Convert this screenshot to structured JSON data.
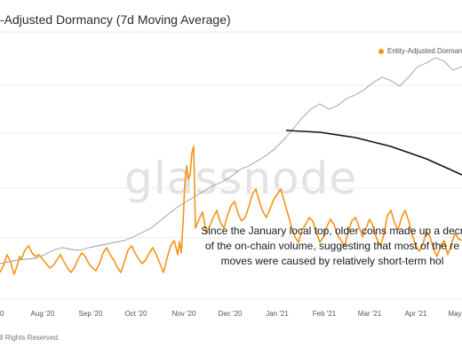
{
  "chart_data": {
    "type": "line",
    "title": "-Adjusted Dormancy (7d Moving Average)",
    "x_ticks": [
      "0",
      "Aug '20",
      "Sep '20",
      "Oct '20",
      "Nov '20",
      "Dec '20",
      "Jan '21",
      "Feb '21",
      "Mar '21",
      "Apr '21",
      "May"
    ],
    "legend_label": "Entity-Adjusted Dormanc",
    "watermark": "glassnode",
    "annotation": "Since the January local top, older coins made up a decr\nof the on-chain volume, suggesting that most of the re\nmoves were caused by relatively short-term hol",
    "footer": "ll Rights Reserved.",
    "grid": true,
    "series": [
      {
        "name": "Entity-Adjusted Dormanc",
        "color": "#f7931a",
        "x": [
          0,
          4,
          8,
          12,
          14,
          16,
          20,
          22,
          24,
          28,
          32,
          36,
          40,
          44,
          48,
          52,
          56,
          60,
          64,
          68,
          72,
          76,
          80,
          84,
          88,
          92,
          96,
          100,
          104,
          108,
          112,
          116,
          120,
          124,
          128,
          132,
          136,
          140,
          144,
          148,
          152,
          156,
          160,
          164,
          168,
          172,
          176,
          180,
          184,
          188,
          192,
          196,
          200,
          202,
          204,
          206,
          208,
          210,
          212,
          214,
          216,
          218,
          220,
          224,
          228,
          232,
          236,
          240,
          244,
          248,
          252,
          256,
          260,
          264,
          268,
          272,
          276,
          280,
          284,
          288,
          292,
          296,
          300,
          304,
          308,
          312,
          316,
          320,
          324,
          328,
          332,
          336,
          340,
          344,
          348,
          352,
          356,
          360,
          364,
          368,
          372,
          376,
          380,
          384,
          388,
          392,
          396,
          400,
          404,
          408,
          412,
          416,
          420,
          424,
          428,
          432,
          436,
          440,
          444,
          448,
          452,
          456,
          460,
          464,
          468,
          472,
          476,
          480,
          484,
          488,
          492,
          496,
          500,
          504,
          508,
          512,
          516,
          520
        ],
        "y": [
          30,
          38,
          50,
          42,
          34,
          28,
          40,
          48,
          45,
          55,
          60,
          52,
          48,
          50,
          45,
          40,
          35,
          38,
          44,
          50,
          42,
          35,
          30,
          36,
          45,
          52,
          48,
          40,
          35,
          32,
          40,
          52,
          58,
          50,
          44,
          36,
          30,
          42,
          55,
          60,
          52,
          45,
          40,
          44,
          52,
          58,
          50,
          40,
          30,
          46,
          60,
          66,
          50,
          65,
          52,
          85,
          130,
          150,
          135,
          140,
          165,
          172,
          80,
          90,
          98,
          75,
          82,
          92,
          100,
          86,
          80,
          94,
          105,
          110,
          96,
          88,
          92,
          104,
          118,
          124,
          110,
          98,
          92,
          102,
          112,
          118,
          124,
          110,
          96,
          82,
          70,
          64,
          78,
          84,
          92,
          88,
          76,
          64,
          70,
          82,
          90,
          84,
          72,
          66,
          60,
          76,
          88,
          92,
          82,
          70,
          80,
          90,
          82,
          68,
          60,
          72,
          94,
          100,
          86,
          78,
          92,
          100,
          88,
          72,
          60,
          54,
          62,
          76,
          70,
          56,
          48,
          60,
          66,
          50,
          62,
          74,
          68,
          66
        ]
      },
      {
        "name": "",
        "color": "#9a9a9a",
        "x": [
          0,
          10,
          20,
          30,
          40,
          50,
          60,
          70,
          80,
          90,
          100,
          110,
          120,
          130,
          140,
          150,
          160,
          170,
          180,
          190,
          200,
          210,
          220,
          230,
          240,
          250,
          260,
          270,
          280,
          290,
          300,
          310,
          320,
          330,
          340,
          350,
          360,
          370,
          380,
          390,
          400,
          410,
          420,
          430,
          440,
          450,
          460,
          470,
          480,
          490,
          500,
          510,
          520
        ],
        "y": [
          40,
          42,
          44,
          45,
          46,
          50,
          55,
          58,
          56,
          55,
          58,
          60,
          62,
          64,
          66,
          70,
          75,
          80,
          88,
          96,
          104,
          110,
          116,
          122,
          128,
          132,
          138,
          146,
          150,
          156,
          162,
          170,
          180,
          192,
          204,
          214,
          220,
          214,
          218,
          226,
          230,
          236,
          244,
          250,
          246,
          240,
          250,
          262,
          266,
          272,
          268,
          258,
          262
        ]
      }
    ],
    "trend_curve": {
      "x": [
        322,
        360,
        400,
        440,
        480,
        520
      ],
      "y": [
        190,
        188,
        182,
        172,
        158,
        140
      ]
    }
  }
}
